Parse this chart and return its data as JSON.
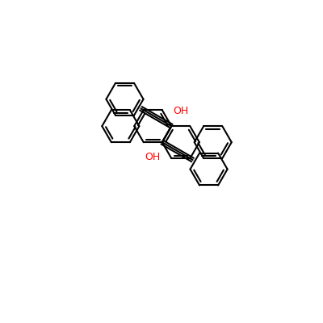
{
  "bg_color": "#ffffff",
  "bond_color": "#000000",
  "oh_color": "#ff0000",
  "lw": 1.5,
  "figsize": [
    4.0,
    4.0
  ],
  "dpi": 100,
  "xlim": [
    0,
    10
  ],
  "ylim": [
    0,
    10
  ]
}
